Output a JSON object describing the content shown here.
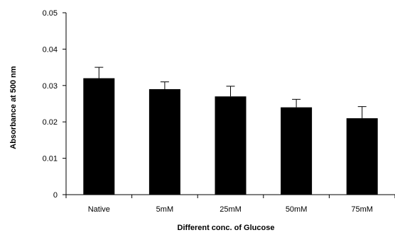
{
  "chart_data": {
    "type": "bar",
    "title": "",
    "xlabel": "Different conc. of Glucose",
    "ylabel": "Absorbance at 500 nm",
    "categories": [
      "Native",
      "5mM",
      "25mM",
      "50mM",
      "75mM"
    ],
    "values": [
      0.032,
      0.029,
      0.027,
      0.024,
      0.021
    ],
    "errors": [
      0.003,
      0.002,
      0.0028,
      0.0022,
      0.0032
    ],
    "ylim": [
      0,
      0.05
    ],
    "yticks": [
      "0",
      "0.01",
      "0.02",
      "0.03",
      "0.04",
      "0.05"
    ],
    "grid": false,
    "bar_color": "#000000"
  }
}
